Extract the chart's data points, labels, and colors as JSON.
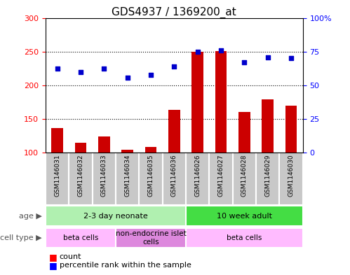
{
  "title": "GDS4937 / 1369200_at",
  "samples": [
    "GSM1146031",
    "GSM1146032",
    "GSM1146033",
    "GSM1146034",
    "GSM1146035",
    "GSM1146036",
    "GSM1146026",
    "GSM1146027",
    "GSM1146028",
    "GSM1146029",
    "GSM1146030"
  ],
  "count_values": [
    136,
    115,
    124,
    104,
    108,
    163,
    250,
    251,
    160,
    179,
    170
  ],
  "percentile_right": [
    62.5,
    60,
    62.5,
    55.5,
    57.5,
    64,
    75,
    76,
    67,
    70.5,
    70
  ],
  "ylim_left": [
    100,
    300
  ],
  "ylim_right": [
    0,
    100
  ],
  "yticks_left": [
    100,
    150,
    200,
    250,
    300
  ],
  "yticks_right": [
    0,
    25,
    50,
    75,
    100
  ],
  "ytick_labels_right": [
    "0",
    "25",
    "50",
    "75",
    "100%"
  ],
  "bar_color": "#cc0000",
  "scatter_color": "#0000cc",
  "title_fontsize": 11,
  "tick_fontsize": 8,
  "sample_box_color": "#c8c8c8",
  "age_groups": [
    {
      "label": "2-3 day neonate",
      "start": 0,
      "end": 6,
      "color": "#b0f0b0"
    },
    {
      "label": "10 week adult",
      "start": 6,
      "end": 11,
      "color": "#44dd44"
    }
  ],
  "cell_type_groups": [
    {
      "label": "beta cells",
      "start": 0,
      "end": 3,
      "color": "#ffbbff"
    },
    {
      "label": "non-endocrine islet\ncells",
      "start": 3,
      "end": 6,
      "color": "#dd88dd"
    },
    {
      "label": "beta cells",
      "start": 6,
      "end": 11,
      "color": "#ffbbff"
    }
  ]
}
